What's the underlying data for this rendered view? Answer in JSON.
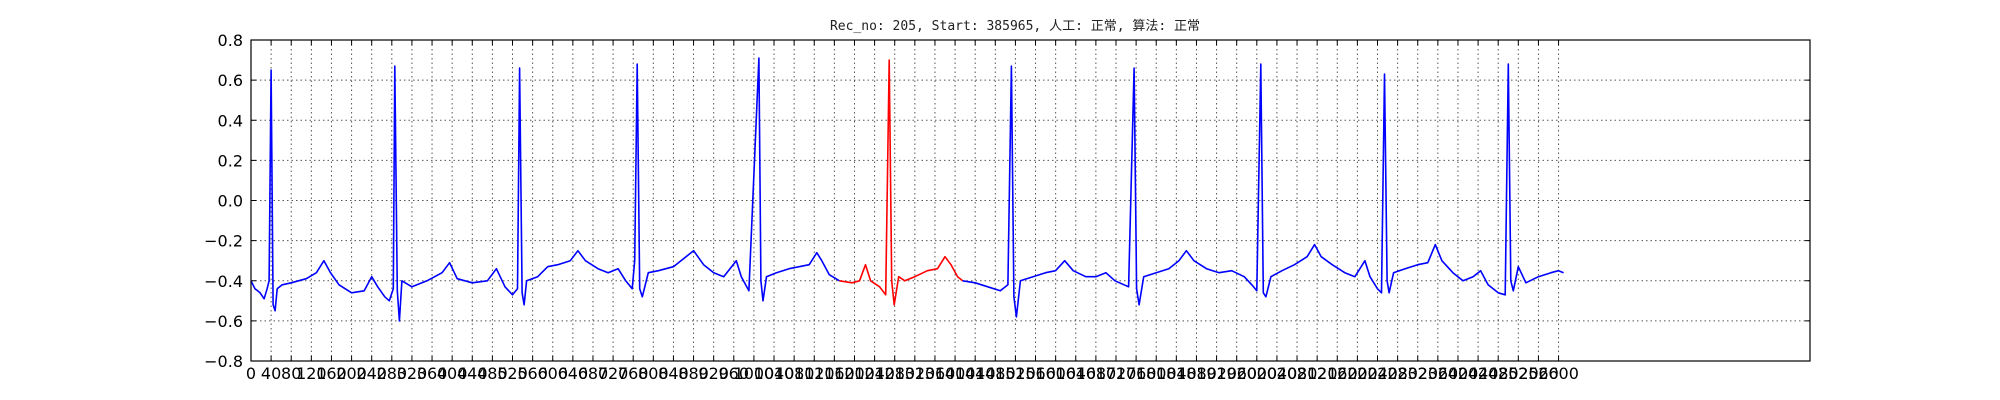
{
  "chart_data": {
    "type": "line",
    "title": "Rec_no: 205, Start: 385965, 人工: 正常, 算法: 正常",
    "xlabel": "",
    "ylabel": "",
    "xlim": [
      0,
      3100
    ],
    "ylim": [
      -0.8,
      0.8
    ],
    "grid": true,
    "yticks": [
      -0.8,
      -0.6,
      -0.4,
      -0.2,
      0.0,
      0.2,
      0.4,
      0.6,
      0.8
    ],
    "ytick_labels": [
      "−0.8",
      "−0.6",
      "−0.4",
      "−0.2",
      "0.0",
      "0.2",
      "0.4",
      "0.6",
      "0.8"
    ],
    "xticks": [
      0,
      40,
      80,
      120,
      160,
      200,
      240,
      280,
      320,
      360,
      400,
      440,
      480,
      520,
      560,
      600,
      640,
      680,
      720,
      760,
      800,
      840,
      880,
      920,
      960,
      1000,
      1040,
      1080,
      1120,
      1160,
      1200,
      1240,
      1280,
      1320,
      1360,
      1400,
      1440,
      1480,
      1520,
      1560,
      1600,
      1640,
      1680,
      1720,
      1760,
      1800,
      1840,
      1880,
      1920,
      1960,
      2000,
      2040,
      2080,
      2120,
      2160,
      2200,
      2240,
      2280,
      2320,
      2360,
      2400,
      2440,
      2480,
      2520,
      2560,
      2600
    ],
    "colors": {
      "normal": "#0000ff",
      "highlight": "#ff0000"
    },
    "series": [
      {
        "color": "#0000ff",
        "points": [
          [
            0,
            -0.4
          ],
          [
            8,
            -0.44
          ],
          [
            18,
            -0.46
          ],
          [
            26,
            -0.49
          ],
          [
            32,
            -0.44
          ],
          [
            36,
            -0.4
          ],
          [
            40,
            0.65
          ],
          [
            44,
            -0.52
          ],
          [
            48,
            -0.55
          ],
          [
            52,
            -0.44
          ],
          [
            62,
            -0.42
          ],
          [
            80,
            -0.41
          ],
          [
            110,
            -0.39
          ],
          [
            130,
            -0.36
          ],
          [
            145,
            -0.3
          ],
          [
            158,
            -0.36
          ],
          [
            175,
            -0.42
          ],
          [
            200,
            -0.46
          ],
          [
            225,
            -0.45
          ],
          [
            240,
            -0.38
          ],
          [
            252,
            -0.43
          ],
          [
            266,
            -0.48
          ],
          [
            275,
            -0.5
          ],
          [
            283,
            -0.44
          ],
          [
            286,
            0.67
          ],
          [
            291,
            -0.45
          ],
          [
            295,
            -0.6
          ],
          [
            300,
            -0.4
          ],
          [
            320,
            -0.43
          ],
          [
            350,
            -0.4
          ],
          [
            380,
            -0.36
          ],
          [
            395,
            -0.31
          ],
          [
            410,
            -0.39
          ],
          [
            440,
            -0.41
          ],
          [
            470,
            -0.4
          ],
          [
            488,
            -0.34
          ],
          [
            505,
            -0.43
          ],
          [
            520,
            -0.47
          ],
          [
            530,
            -0.44
          ],
          [
            534,
            0.66
          ],
          [
            539,
            -0.46
          ],
          [
            543,
            -0.52
          ],
          [
            548,
            -0.4
          ],
          [
            570,
            -0.38
          ],
          [
            590,
            -0.33
          ],
          [
            610,
            -0.32
          ],
          [
            635,
            -0.3
          ],
          [
            650,
            -0.25
          ],
          [
            665,
            -0.3
          ],
          [
            690,
            -0.34
          ],
          [
            710,
            -0.36
          ],
          [
            730,
            -0.34
          ],
          [
            745,
            -0.4
          ],
          [
            758,
            -0.44
          ],
          [
            763,
            -0.3
          ],
          [
            768,
            0.68
          ],
          [
            773,
            -0.44
          ],
          [
            778,
            -0.48
          ],
          [
            790,
            -0.36
          ],
          [
            810,
            -0.35
          ],
          [
            840,
            -0.33
          ],
          [
            865,
            -0.28
          ],
          [
            880,
            -0.25
          ],
          [
            900,
            -0.32
          ],
          [
            920,
            -0.36
          ],
          [
            940,
            -0.38
          ],
          [
            965,
            -0.3
          ],
          [
            975,
            -0.38
          ],
          [
            990,
            -0.45
          ],
          [
            1010,
            0.71
          ],
          [
            1014,
            -0.4
          ],
          [
            1018,
            -0.5
          ],
          [
            1025,
            -0.38
          ],
          [
            1045,
            -0.36
          ],
          [
            1070,
            -0.34
          ],
          [
            1090,
            -0.33
          ],
          [
            1110,
            -0.32
          ],
          [
            1125,
            -0.26
          ],
          [
            1135,
            -0.3
          ],
          [
            1150,
            -0.37
          ],
          [
            1170,
            -0.4
          ]
        ]
      },
      {
        "color": "#ff0000",
        "points": [
          [
            1170,
            -0.4
          ],
          [
            1195,
            -0.41
          ],
          [
            1210,
            -0.4
          ],
          [
            1222,
            -0.32
          ],
          [
            1232,
            -0.4
          ],
          [
            1250,
            -0.43
          ],
          [
            1262,
            -0.47
          ],
          [
            1269,
            0.7
          ],
          [
            1274,
            -0.4
          ],
          [
            1279,
            -0.52
          ],
          [
            1288,
            -0.38
          ],
          [
            1300,
            -0.4
          ],
          [
            1320,
            -0.38
          ],
          [
            1345,
            -0.35
          ],
          [
            1365,
            -0.34
          ],
          [
            1380,
            -0.28
          ],
          [
            1392,
            -0.32
          ],
          [
            1405,
            -0.38
          ],
          [
            1415,
            -0.4
          ]
        ]
      },
      {
        "color": "#0000ff",
        "points": [
          [
            1415,
            -0.4
          ],
          [
            1440,
            -0.41
          ],
          [
            1465,
            -0.43
          ],
          [
            1490,
            -0.45
          ],
          [
            1505,
            -0.42
          ],
          [
            1512,
            0.67
          ],
          [
            1517,
            -0.48
          ],
          [
            1522,
            -0.58
          ],
          [
            1530,
            -0.4
          ],
          [
            1555,
            -0.38
          ],
          [
            1580,
            -0.36
          ],
          [
            1600,
            -0.35
          ],
          [
            1618,
            -0.3
          ],
          [
            1635,
            -0.35
          ],
          [
            1660,
            -0.38
          ],
          [
            1680,
            -0.38
          ],
          [
            1700,
            -0.36
          ],
          [
            1718,
            -0.4
          ],
          [
            1745,
            -0.43
          ],
          [
            1756,
            0.66
          ],
          [
            1761,
            -0.44
          ],
          [
            1766,
            -0.52
          ],
          [
            1775,
            -0.38
          ],
          [
            1800,
            -0.36
          ],
          [
            1825,
            -0.34
          ],
          [
            1845,
            -0.3
          ],
          [
            1860,
            -0.25
          ],
          [
            1875,
            -0.3
          ],
          [
            1900,
            -0.34
          ],
          [
            1925,
            -0.36
          ],
          [
            1950,
            -0.35
          ],
          [
            1975,
            -0.38
          ],
          [
            1990,
            -0.42
          ],
          [
            2000,
            -0.45
          ],
          [
            2008,
            0.68
          ],
          [
            2013,
            -0.46
          ],
          [
            2018,
            -0.48
          ],
          [
            2028,
            -0.38
          ],
          [
            2050,
            -0.35
          ],
          [
            2075,
            -0.32
          ],
          [
            2100,
            -0.28
          ],
          [
            2115,
            -0.22
          ],
          [
            2128,
            -0.28
          ],
          [
            2150,
            -0.32
          ],
          [
            2175,
            -0.36
          ],
          [
            2195,
            -0.38
          ],
          [
            2215,
            -0.3
          ],
          [
            2225,
            -0.38
          ],
          [
            2240,
            -0.44
          ],
          [
            2248,
            -0.46
          ],
          [
            2254,
            0.63
          ],
          [
            2259,
            -0.4
          ],
          [
            2263,
            -0.46
          ],
          [
            2272,
            -0.36
          ],
          [
            2295,
            -0.34
          ],
          [
            2320,
            -0.32
          ],
          [
            2340,
            -0.31
          ],
          [
            2355,
            -0.22
          ],
          [
            2368,
            -0.3
          ],
          [
            2390,
            -0.36
          ],
          [
            2410,
            -0.4
          ],
          [
            2430,
            -0.38
          ],
          [
            2445,
            -0.35
          ],
          [
            2460,
            -0.42
          ],
          [
            2480,
            -0.46
          ],
          [
            2494,
            -0.47
          ],
          [
            2500,
            0.68
          ],
          [
            2505,
            -0.4
          ],
          [
            2510,
            -0.45
          ],
          [
            2520,
            -0.33
          ],
          [
            2535,
            -0.41
          ],
          [
            2560,
            -0.38
          ],
          [
            2585,
            -0.36
          ],
          [
            2600,
            -0.35
          ],
          [
            2610,
            -0.36
          ]
        ]
      }
    ]
  }
}
